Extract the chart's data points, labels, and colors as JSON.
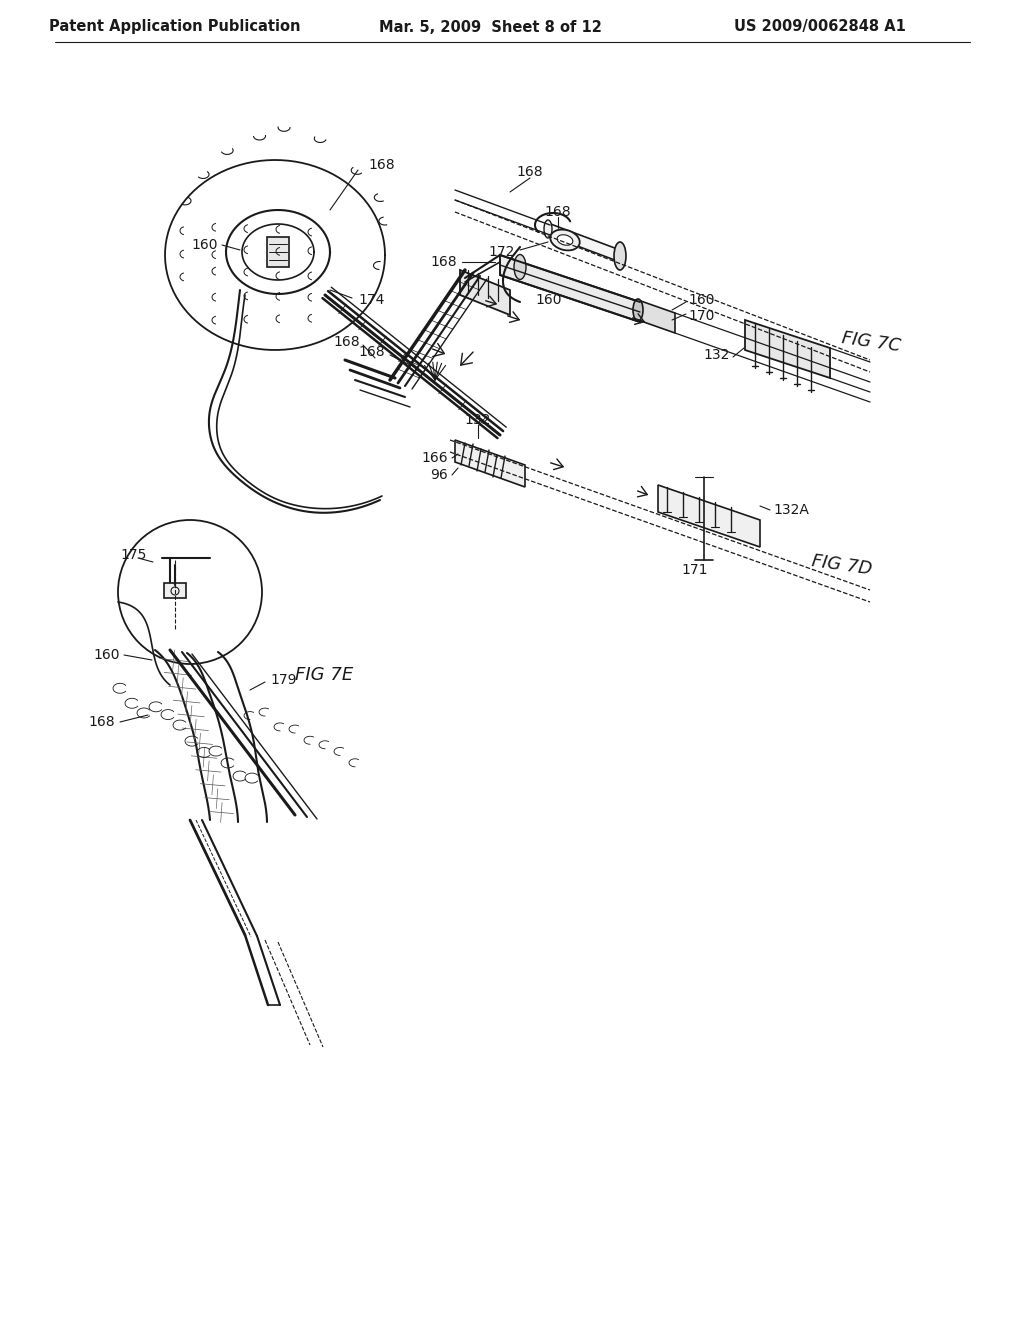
{
  "header_left": "Patent Application Publication",
  "header_center": "Mar. 5, 2009  Sheet 8 of 12",
  "header_right": "US 2009/0062848 A1",
  "bg_color": "#ffffff",
  "text_color": "#1a1a1a",
  "line_color": "#1a1a1a",
  "fig_labels": {
    "fig7c": "FIG 7C",
    "fig7d": "FIG 7D",
    "fig7e": "FIG 7E"
  },
  "header_fontsize": 10.5,
  "label_fontsize": 12,
  "ref_fontsize": 10
}
